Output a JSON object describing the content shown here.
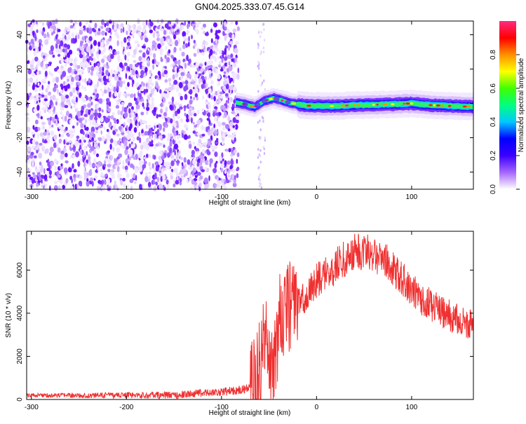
{
  "title": "GN04.2025.333.07.45.G14",
  "chart_data": [
    {
      "type": "heatmap",
      "xlabel": "Height of straight line (km)",
      "ylabel": "Frequency (Hz)",
      "xlim": [
        -305,
        165
      ],
      "ylim": [
        -50,
        48
      ],
      "xticks": [
        -300,
        -200,
        -100,
        0,
        100
      ],
      "yticks": [
        -40,
        -20,
        0,
        20,
        40
      ],
      "noise_region_x": [
        -305,
        -82
      ],
      "signal_ridge": {
        "x": [
          -85,
          -75,
          -65,
          -55,
          -45,
          -35,
          -25,
          -15,
          -5,
          0,
          20,
          40,
          60,
          80,
          100,
          120,
          140,
          165
        ],
        "frequency": [
          0.5,
          -0.5,
          -2,
          1.5,
          3,
          1.5,
          0,
          -1,
          -1.5,
          -1.5,
          -1.5,
          -1,
          -0.8,
          -0.5,
          0,
          -1,
          -1.5,
          -2
        ]
      },
      "colorbar": {
        "label": "Normalized spectral amplitude",
        "range": [
          0,
          1
        ],
        "ticks": [
          "0.0",
          "0.2",
          "0.4",
          "0.6",
          "0.8"
        ],
        "colors": [
          "#ffffff",
          "#a566ff",
          "#3b00ff",
          "#0000ff",
          "#00c8ff",
          "#00ff80",
          "#40ff00",
          "#ffff00",
          "#ff9000",
          "#ff0000",
          "#ff2a80"
        ]
      }
    },
    {
      "type": "line",
      "xlabel": "Height of straight line (km)",
      "ylabel": "SNR (10 * v/v)",
      "xlim": [
        -305,
        165
      ],
      "ylim": [
        0,
        7800
      ],
      "xticks": [
        -300,
        -200,
        -100,
        0,
        100
      ],
      "yticks": [
        0,
        2000,
        4000,
        6000
      ],
      "color": "#f03030",
      "series": [
        {
          "x": [
            -305,
            -250,
            -200,
            -150,
            -120,
            -100,
            -90,
            -80,
            -75,
            -70,
            -65,
            -60,
            -55,
            -50,
            -45,
            -40,
            -35,
            -30,
            -25,
            -20,
            -15,
            -10,
            -5,
            0,
            10,
            20,
            30,
            40,
            50,
            60,
            70,
            80,
            90,
            100,
            110,
            120,
            130,
            140,
            150,
            160,
            165
          ],
          "values": [
            200,
            180,
            200,
            200,
            300,
            350,
            400,
            450,
            500,
            600,
            700,
            1500,
            3000,
            2500,
            1200,
            3500,
            4000,
            4300,
            4200,
            4500,
            4600,
            4800,
            5200,
            5500,
            5800,
            6200,
            6500,
            6800,
            6900,
            6800,
            6500,
            6100,
            5600,
            5100,
            4700,
            4400,
            4100,
            3900,
            3700,
            3500,
            3400
          ]
        }
      ]
    }
  ]
}
